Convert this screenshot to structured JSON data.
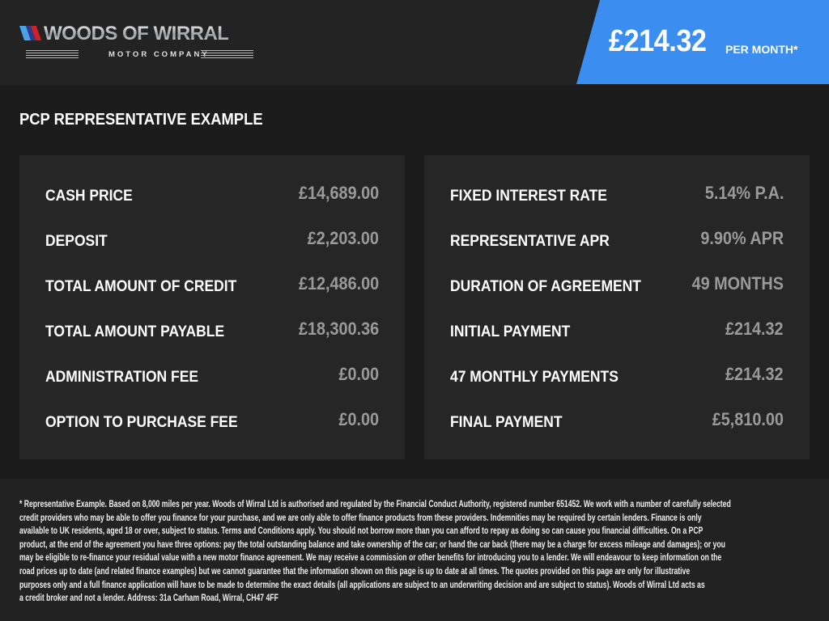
{
  "header": {
    "logo": {
      "name": "WOODS OF WIRRAL",
      "tagline": "MOTOR COMPANY"
    },
    "price": "£214.32",
    "price_suffix": "PER MONTH*",
    "accent_color": "#3b8eef"
  },
  "section_title": "PCP REPRESENTATIVE EXAMPLE",
  "left_panel": [
    {
      "label": "CASH PRICE",
      "value": "£14,689.00"
    },
    {
      "label": "DEPOSIT",
      "value": "£2,203.00"
    },
    {
      "label": "TOTAL AMOUNT OF CREDIT",
      "value": "£12,486.00"
    },
    {
      "label": "TOTAL AMOUNT PAYABLE",
      "value": "£18,300.36"
    },
    {
      "label": "ADMINISTRATION FEE",
      "value": "£0.00"
    },
    {
      "label": "OPTION TO PURCHASE FEE",
      "value": "£0.00"
    }
  ],
  "right_panel": [
    {
      "label": "FIXED INTEREST RATE",
      "value": "5.14% P.A."
    },
    {
      "label": "REPRESENTATIVE APR",
      "value": "9.90% APR"
    },
    {
      "label": "DURATION OF AGREEMENT",
      "value": "49 MONTHS"
    },
    {
      "label": "INITIAL PAYMENT",
      "value": "£214.32"
    },
    {
      "label": "47 MONTHLY PAYMENTS",
      "value": "£214.32"
    },
    {
      "label": "FINAL PAYMENT",
      "value": "£5,810.00"
    }
  ],
  "footer_lines": [
    "* Representative Example. Based on 8,000 miles per year. Woods of Wirral Ltd is authorised and regulated by the Financial Conduct Authority, registered number 651452. We work with a number of carefully selected",
    "credit providers who may be able to offer you finance for your purchase, and we are only able to offer finance products from these providers. Indemnities may be required by certain lenders. Finance is only",
    "available to UK residents, aged 18 or over, subject to status. Terms and Conditions apply. You should not borrow more than you can afford to repay as doing so can cause you financial difficulties. On a PCP",
    "product, at the end of the agreement you have three options: pay the total outstanding balance and take ownership of the car; or hand the car back (there may be a charge for excess mileage and damages); or you",
    "may be eligible to re-finance your residual value with a new motor finance agreement. We may receive a commission or other benefits for introducing you to a lender. We will endeavour to keep information on the",
    "road prices up to date (and related finance examples) but we cannot guarantee that the information shown on this page is up to date at all times. The quotes provided on this page are only for illustrative",
    "purposes only and a full finance application will have to be made to determine the exact details (all applications are subject to an underwriting decision and are subject to status). Woods of Wirral Ltd acts as",
    "a credit broker and not a lender. Address: 31a Carham Road, Wirral, CH47 4FF"
  ]
}
